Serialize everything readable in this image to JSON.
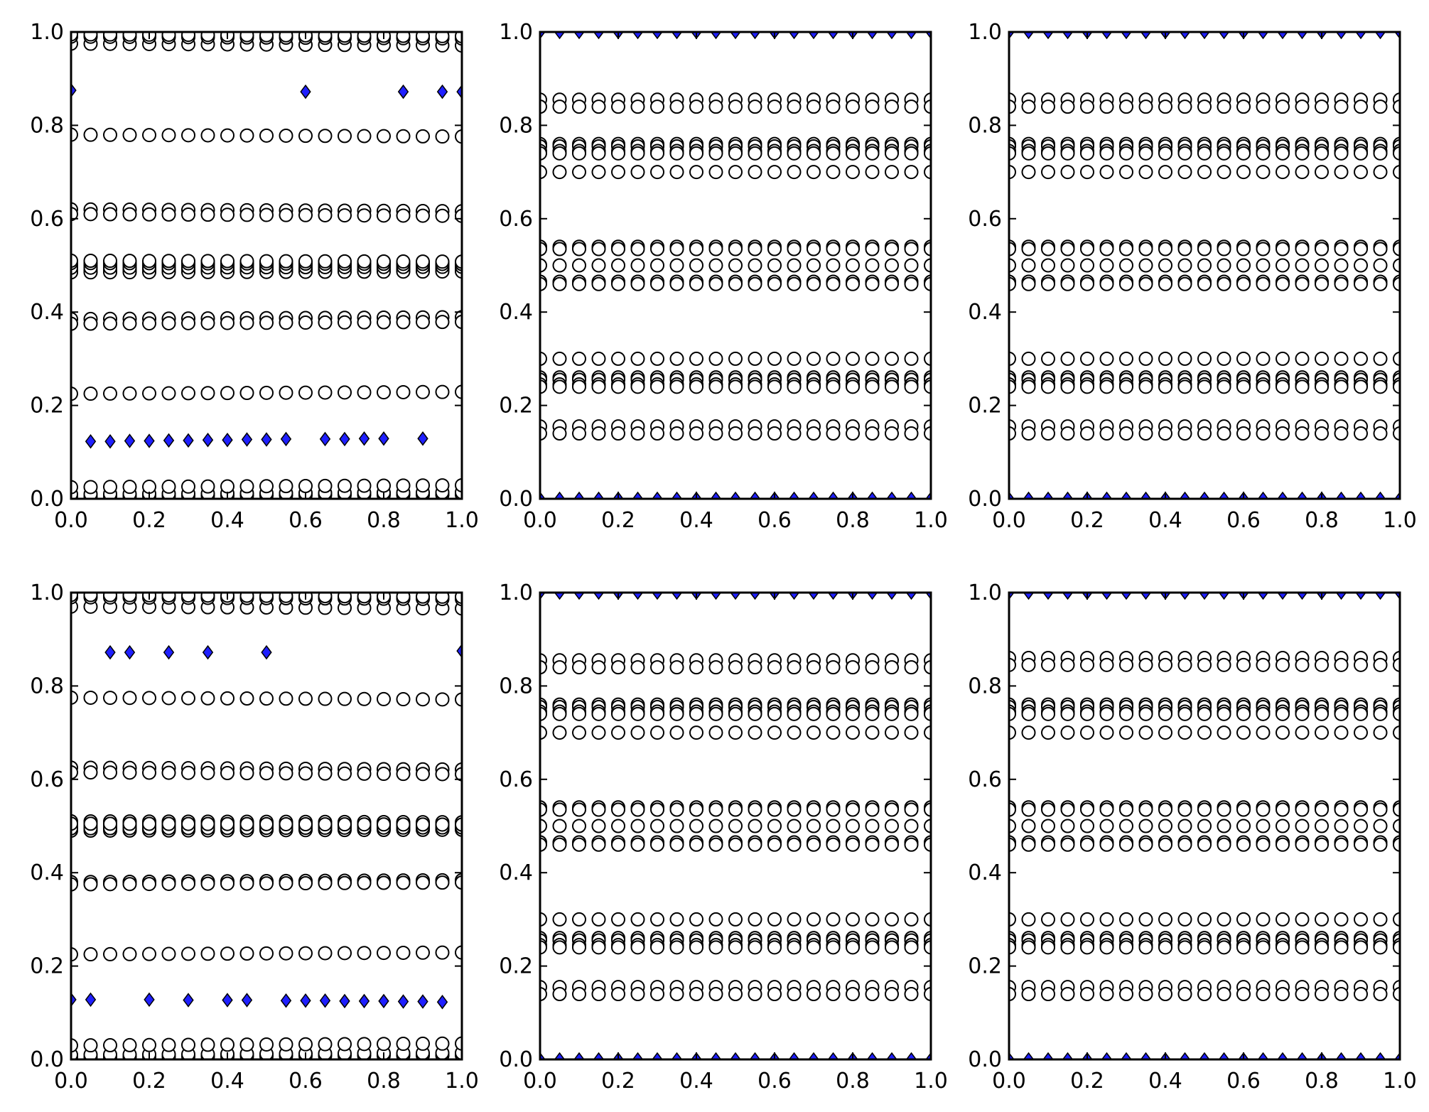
{
  "chart_data": [
    {
      "type": "scatter",
      "xlim": [
        0,
        1
      ],
      "ylim": [
        0,
        1
      ],
      "xticks": [
        "0.0",
        "0.2",
        "0.4",
        "0.6",
        "0.8",
        "1.0"
      ],
      "yticks": [
        "0.0",
        "0.2",
        "0.4",
        "0.6",
        "0.8",
        "1.0"
      ],
      "grid": false,
      "x": [
        0,
        0.05,
        0.1,
        0.15,
        0.2,
        0.25,
        0.3,
        0.35,
        0.4,
        0.45,
        0.5,
        0.55,
        0.6,
        0.65,
        0.7,
        0.75,
        0.8,
        0.85,
        0.9,
        0.95,
        1.0
      ],
      "circle_levels": [
        0.005,
        0.01,
        0.025,
        0.975,
        0.99,
        0.995,
        0.78,
        0.62,
        0.61,
        0.5,
        0.49,
        0.485,
        0.495,
        0.505,
        0.51,
        0.385,
        0.375,
        0.225
      ],
      "diamonds": [
        [
          0,
          0.875
        ],
        [
          0.6,
          0.872
        ],
        [
          0.85,
          0.872
        ],
        [
          0.95,
          0.872
        ],
        [
          1.0,
          0.872
        ],
        [
          0.05,
          0.123
        ],
        [
          0.1,
          0.123
        ],
        [
          0.15,
          0.124
        ],
        [
          0.2,
          0.124
        ],
        [
          0.25,
          0.125
        ],
        [
          0.3,
          0.125
        ],
        [
          0.35,
          0.126
        ],
        [
          0.4,
          0.126
        ],
        [
          0.45,
          0.127
        ],
        [
          0.5,
          0.127
        ],
        [
          0.55,
          0.128
        ],
        [
          0.65,
          0.128
        ],
        [
          0.7,
          0.128
        ],
        [
          0.75,
          0.129
        ],
        [
          0.8,
          0.129
        ],
        [
          0.9,
          0.129
        ]
      ],
      "marker_colors": {
        "circle_edge": "#000000",
        "circle_fill": "#ffffff",
        "diamond_fill": "#1f1fff",
        "diamond_edge": "#000000"
      }
    },
    {
      "type": "scatter",
      "xlim": [
        0,
        1
      ],
      "ylim": [
        0,
        1
      ],
      "xticks": [
        "0.0",
        "0.2",
        "0.4",
        "0.6",
        "0.8",
        "1.0"
      ],
      "yticks": [
        "0.0",
        "0.2",
        "0.4",
        "0.6",
        "0.8",
        "1.0"
      ],
      "grid": false,
      "x": [
        0,
        0.05,
        0.1,
        0.15,
        0.2,
        0.25,
        0.3,
        0.35,
        0.4,
        0.45,
        0.5,
        0.55,
        0.6,
        0.65,
        0.7,
        0.75,
        0.8,
        0.85,
        0.9,
        0.95,
        1.0
      ],
      "circle_levels": [
        0.855,
        0.84,
        0.76,
        0.755,
        0.745,
        0.74,
        0.7,
        0.54,
        0.535,
        0.5,
        0.465,
        0.46,
        0.3,
        0.26,
        0.255,
        0.245,
        0.24,
        0.155,
        0.14
      ],
      "diamonds": "top_and_bottom",
      "diamond_levels": [
        0.0,
        1.0
      ],
      "marker_colors": {
        "circle_edge": "#000000",
        "circle_fill": "#ffffff",
        "diamond_fill": "#1f1fff",
        "diamond_edge": "#000000"
      }
    },
    {
      "type": "scatter",
      "xlim": [
        0,
        1
      ],
      "ylim": [
        0,
        1
      ],
      "xticks": [
        "0.0",
        "0.2",
        "0.4",
        "0.6",
        "0.8",
        "1.0"
      ],
      "yticks": [
        "0.0",
        "0.2",
        "0.4",
        "0.6",
        "0.8",
        "1.0"
      ],
      "grid": false,
      "x": [
        0,
        0.05,
        0.1,
        0.15,
        0.2,
        0.25,
        0.3,
        0.35,
        0.4,
        0.45,
        0.5,
        0.55,
        0.6,
        0.65,
        0.7,
        0.75,
        0.8,
        0.85,
        0.9,
        0.95,
        1.0
      ],
      "circle_levels": [
        0.855,
        0.84,
        0.76,
        0.755,
        0.745,
        0.74,
        0.7,
        0.54,
        0.535,
        0.5,
        0.465,
        0.46,
        0.3,
        0.26,
        0.255,
        0.245,
        0.24,
        0.155,
        0.14
      ],
      "diamonds": "top_and_bottom",
      "diamond_levels": [
        0.0,
        1.0
      ],
      "marker_colors": {
        "circle_edge": "#000000",
        "circle_fill": "#ffffff",
        "diamond_fill": "#1f1fff",
        "diamond_edge": "#000000"
      }
    },
    {
      "type": "scatter",
      "xlim": [
        0,
        1
      ],
      "ylim": [
        0,
        1
      ],
      "xticks": [
        "0.0",
        "0.2",
        "0.4",
        "0.6",
        "0.8",
        "1.0"
      ],
      "yticks": [
        "0.0",
        "0.2",
        "0.4",
        "0.6",
        "0.8",
        "1.0"
      ],
      "grid": false,
      "x": [
        0,
        0.05,
        0.1,
        0.15,
        0.2,
        0.25,
        0.3,
        0.35,
        0.4,
        0.45,
        0.5,
        0.55,
        0.6,
        0.65,
        0.7,
        0.75,
        0.8,
        0.85,
        0.9,
        0.95,
        1.0
      ],
      "circle_levels": [
        0.005,
        0.01,
        0.03,
        0.97,
        0.99,
        0.995,
        0.775,
        0.625,
        0.615,
        0.51,
        0.5,
        0.49,
        0.495,
        0.505,
        0.38,
        0.375,
        0.225
      ],
      "diamonds": [
        [
          0.1,
          0.872
        ],
        [
          0.15,
          0.872
        ],
        [
          0.25,
          0.872
        ],
        [
          0.35,
          0.872
        ],
        [
          0.5,
          0.872
        ],
        [
          1.0,
          0.875
        ],
        [
          0,
          0.128
        ],
        [
          0.05,
          0.128
        ],
        [
          0.2,
          0.128
        ],
        [
          0.3,
          0.127
        ],
        [
          0.4,
          0.127
        ],
        [
          0.45,
          0.127
        ],
        [
          0.55,
          0.126
        ],
        [
          0.6,
          0.126
        ],
        [
          0.65,
          0.126
        ],
        [
          0.7,
          0.125
        ],
        [
          0.75,
          0.125
        ],
        [
          0.8,
          0.125
        ],
        [
          0.85,
          0.124
        ],
        [
          0.9,
          0.124
        ],
        [
          0.95,
          0.123
        ]
      ],
      "marker_colors": {
        "circle_edge": "#000000",
        "circle_fill": "#ffffff",
        "diamond_fill": "#1f1fff",
        "diamond_edge": "#000000"
      }
    },
    {
      "type": "scatter",
      "xlim": [
        0,
        1
      ],
      "ylim": [
        0,
        1
      ],
      "xticks": [
        "0.0",
        "0.2",
        "0.4",
        "0.6",
        "0.8",
        "1.0"
      ],
      "yticks": [
        "0.0",
        "0.2",
        "0.4",
        "0.6",
        "0.8",
        "1.0"
      ],
      "grid": false,
      "x": [
        0,
        0.05,
        0.1,
        0.15,
        0.2,
        0.25,
        0.3,
        0.35,
        0.4,
        0.45,
        0.5,
        0.55,
        0.6,
        0.65,
        0.7,
        0.75,
        0.8,
        0.85,
        0.9,
        0.95,
        1.0
      ],
      "circle_levels": [
        0.855,
        0.84,
        0.76,
        0.755,
        0.745,
        0.74,
        0.7,
        0.54,
        0.535,
        0.5,
        0.465,
        0.46,
        0.3,
        0.26,
        0.255,
        0.245,
        0.24,
        0.155,
        0.14
      ],
      "diamonds": "top_and_bottom",
      "diamond_levels": [
        0.0,
        1.0
      ],
      "marker_colors": {
        "circle_edge": "#000000",
        "circle_fill": "#ffffff",
        "diamond_fill": "#1f1fff",
        "diamond_edge": "#000000"
      }
    },
    {
      "type": "scatter",
      "xlim": [
        0,
        1
      ],
      "ylim": [
        0,
        1
      ],
      "xticks": [
        "0.0",
        "0.2",
        "0.4",
        "0.6",
        "0.8",
        "1.0"
      ],
      "yticks": [
        "0.0",
        "0.2",
        "0.4",
        "0.6",
        "0.8",
        "1.0"
      ],
      "grid": false,
      "x": [
        0,
        0.05,
        0.1,
        0.15,
        0.2,
        0.25,
        0.3,
        0.35,
        0.4,
        0.45,
        0.5,
        0.55,
        0.6,
        0.65,
        0.7,
        0.75,
        0.8,
        0.85,
        0.9,
        0.95,
        1.0
      ],
      "circle_levels": [
        0.86,
        0.845,
        0.76,
        0.755,
        0.745,
        0.74,
        0.7,
        0.54,
        0.535,
        0.5,
        0.465,
        0.46,
        0.3,
        0.26,
        0.255,
        0.245,
        0.24,
        0.155,
        0.14
      ],
      "diamonds": "top_and_bottom",
      "diamond_levels": [
        0.0,
        1.0
      ],
      "marker_colors": {
        "circle_edge": "#000000",
        "circle_fill": "#ffffff",
        "diamond_fill": "#1f1fff",
        "diamond_edge": "#000000"
      }
    }
  ]
}
